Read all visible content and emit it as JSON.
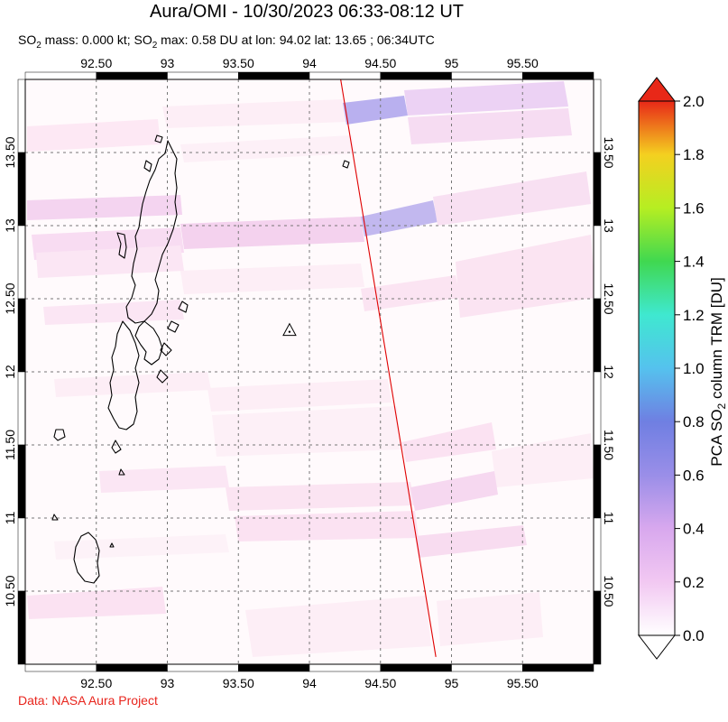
{
  "title": "Aura/OMI - 10/30/2023 06:33-08:12 UT",
  "subtitle": {
    "so2_mass_label": "SO",
    "so2_mass_sub": "2",
    "so2_mass_text": " mass: 0.000 kt; SO",
    "so2_max_sub": "2",
    "so2_max_text": " max: 0.58 DU at lon: 94.02 lat: 13.65 ; 06:34UTC"
  },
  "credit": "Data: NASA Aura Project",
  "map": {
    "lon_range": [
      92.0,
      96.0
    ],
    "lat_range": [
      10.0,
      14.0
    ],
    "lon_ticks": [
      {
        "value": 92.5,
        "label": "92.50"
      },
      {
        "value": 93.0,
        "label": "93"
      },
      {
        "value": 93.5,
        "label": "93.50"
      },
      {
        "value": 94.0,
        "label": "94"
      },
      {
        "value": 94.5,
        "label": "94.50"
      },
      {
        "value": 95.0,
        "label": "95"
      },
      {
        "value": 95.5,
        "label": "95.50"
      }
    ],
    "lat_ticks": [
      {
        "value": 13.5,
        "label": "13.50"
      },
      {
        "value": 13.0,
        "label": "13"
      },
      {
        "value": 12.5,
        "label": "12.50"
      },
      {
        "value": 12.0,
        "label": "12"
      },
      {
        "value": 11.5,
        "label": "11.50"
      },
      {
        "value": 11.0,
        "label": "11"
      },
      {
        "value": 10.5,
        "label": "10.50"
      }
    ],
    "volcano_marker": {
      "lon": 93.86,
      "lat": 12.28
    },
    "orbit_track": {
      "start": {
        "lon": 94.22,
        "lat": 14.0
      },
      "end": {
        "lon": 94.89,
        "lat": 10.05
      }
    }
  },
  "colorbar": {
    "label_main": "PCA SO",
    "label_sub": "2",
    "label_tail": " column TRM [DU]",
    "min": 0.0,
    "max": 2.0,
    "ticks": [
      "0.0",
      "0.2",
      "0.4",
      "0.6",
      "0.8",
      "1.0",
      "1.2",
      "1.4",
      "1.6",
      "1.8",
      "2.0"
    ],
    "colors": [
      "#ffffff",
      "#f2c8f2",
      "#9a8ee8",
      "#6a6adc",
      "#4f9be6",
      "#3fe0e8",
      "#30d060",
      "#9aec28",
      "#f4f020",
      "#f5a020",
      "#e82818",
      "#d01010"
    ]
  }
}
